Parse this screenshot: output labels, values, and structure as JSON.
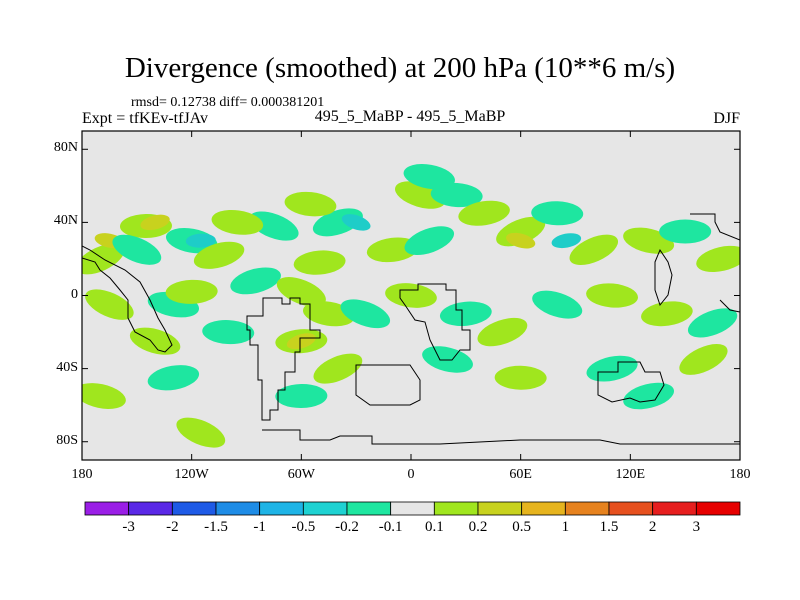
{
  "header": {
    "title": "Divergence (smoothed) at 200 hPa (10**6 m/s)",
    "subinfo": "rmsd= 0.12738 diff= 0.000381201",
    "expt": "Expt = tfKEv-tfJAv",
    "center": "495_5_MaBP - 495_5_MaBP",
    "season": "DJF"
  },
  "colors": {
    "background_field": "#e6e6e6",
    "coastline": "#000000"
  },
  "chart_data": {
    "type": "heatmap",
    "title": "Divergence (smoothed) at 200 hPa (10**6 m/s)",
    "projection": "cylindrical-equidistant",
    "xlim": [
      -180,
      180
    ],
    "ylim": [
      -90,
      90
    ],
    "x_ticks": [
      {
        "value": -180,
        "label": "180"
      },
      {
        "value": -120,
        "label": "120W"
      },
      {
        "value": -60,
        "label": "60W"
      },
      {
        "value": 0,
        "label": "0"
      },
      {
        "value": 60,
        "label": "60E"
      },
      {
        "value": 120,
        "label": "120E"
      },
      {
        "value": 180,
        "label": "180"
      }
    ],
    "y_ticks": [
      {
        "value": 80,
        "label": "80N"
      },
      {
        "value": 40,
        "label": "40N"
      },
      {
        "value": 0,
        "label": "0"
      },
      {
        "value": -40,
        "label": "40S"
      },
      {
        "value": -80,
        "label": "80S"
      }
    ],
    "colorbar": {
      "labels": [
        "-3",
        "-2",
        "-1.5",
        "-1",
        "-0.5",
        "-0.2",
        "-0.1",
        "0.1",
        "0.2",
        "0.5",
        "1",
        "1.5",
        "2",
        "3"
      ],
      "colors": [
        "#9a1ee6",
        "#5a28e6",
        "#1e5ae6",
        "#1e8ce6",
        "#1eb4e6",
        "#1ed2d2",
        "#1ee6a0",
        "#e6e6e6",
        "#a0e61e",
        "#c8d21e",
        "#e6b41e",
        "#e6821e",
        "#e6501e",
        "#e61e1e",
        "#e60000"
      ]
    },
    "features": [
      {
        "lon": -170,
        "lat": 20,
        "level": 1
      },
      {
        "lon": -165,
        "lat": 30,
        "level": 2
      },
      {
        "lon": -145,
        "lat": 38,
        "level": 1
      },
      {
        "lon": -140,
        "lat": 40,
        "level": 2
      },
      {
        "lon": -150,
        "lat": 25,
        "level": -1
      },
      {
        "lon": -120,
        "lat": 30,
        "level": -1
      },
      {
        "lon": -115,
        "lat": 30,
        "level": -2
      },
      {
        "lon": -105,
        "lat": 22,
        "level": 1
      },
      {
        "lon": -75,
        "lat": 38,
        "level": -1
      },
      {
        "lon": -95,
        "lat": 40,
        "level": 1
      },
      {
        "lon": -50,
        "lat": 18,
        "level": 1
      },
      {
        "lon": -40,
        "lat": 40,
        "level": -1
      },
      {
        "lon": -30,
        "lat": 40,
        "level": -2
      },
      {
        "lon": -55,
        "lat": 50,
        "level": 1
      },
      {
        "lon": -10,
        "lat": 25,
        "level": 1
      },
      {
        "lon": 10,
        "lat": 30,
        "level": -1
      },
      {
        "lon": 5,
        "lat": 55,
        "level": 1
      },
      {
        "lon": 25,
        "lat": 55,
        "level": -1
      },
      {
        "lon": 40,
        "lat": 45,
        "level": 1
      },
      {
        "lon": 60,
        "lat": 35,
        "level": 1
      },
      {
        "lon": 60,
        "lat": 30,
        "level": 2
      },
      {
        "lon": 80,
        "lat": 45,
        "level": -1
      },
      {
        "lon": 85,
        "lat": 30,
        "level": -2
      },
      {
        "lon": 100,
        "lat": 25,
        "level": 1
      },
      {
        "lon": 130,
        "lat": 30,
        "level": 1
      },
      {
        "lon": 150,
        "lat": 35,
        "level": -1
      },
      {
        "lon": 170,
        "lat": 20,
        "level": 1
      },
      {
        "lon": -165,
        "lat": -5,
        "level": 1
      },
      {
        "lon": -130,
        "lat": -5,
        "level": -1
      },
      {
        "lon": -120,
        "lat": 2,
        "level": 1
      },
      {
        "lon": -85,
        "lat": 8,
        "level": -1
      },
      {
        "lon": -60,
        "lat": 2,
        "level": 1
      },
      {
        "lon": -45,
        "lat": -10,
        "level": 1
      },
      {
        "lon": -60,
        "lat": -25,
        "level": 1
      },
      {
        "lon": -60,
        "lat": -25,
        "level": 2
      },
      {
        "lon": -25,
        "lat": -10,
        "level": -1
      },
      {
        "lon": 0,
        "lat": 0,
        "level": 1
      },
      {
        "lon": 30,
        "lat": -10,
        "level": -1
      },
      {
        "lon": 50,
        "lat": -20,
        "level": 1
      },
      {
        "lon": 80,
        "lat": -5,
        "level": -1
      },
      {
        "lon": 110,
        "lat": 0,
        "level": 1
      },
      {
        "lon": 140,
        "lat": -10,
        "level": 1
      },
      {
        "lon": 165,
        "lat": -15,
        "level": -1
      },
      {
        "lon": -140,
        "lat": -25,
        "level": 1
      },
      {
        "lon": -100,
        "lat": -20,
        "level": -1
      },
      {
        "lon": -130,
        "lat": -45,
        "level": -1
      },
      {
        "lon": -40,
        "lat": -40,
        "level": 1
      },
      {
        "lon": 20,
        "lat": -35,
        "level": -1
      },
      {
        "lon": 60,
        "lat": -45,
        "level": 1
      },
      {
        "lon": 110,
        "lat": -40,
        "level": -1
      },
      {
        "lon": 160,
        "lat": -35,
        "level": 1
      },
      {
        "lon": -170,
        "lat": -55,
        "level": 1
      },
      {
        "lon": -60,
        "lat": -55,
        "level": -1
      },
      {
        "lon": 130,
        "lat": -55,
        "level": -1
      },
      {
        "lon": -115,
        "lat": -75,
        "level": 1
      },
      {
        "lon": 10,
        "lat": 65,
        "level": -1
      }
    ]
  }
}
